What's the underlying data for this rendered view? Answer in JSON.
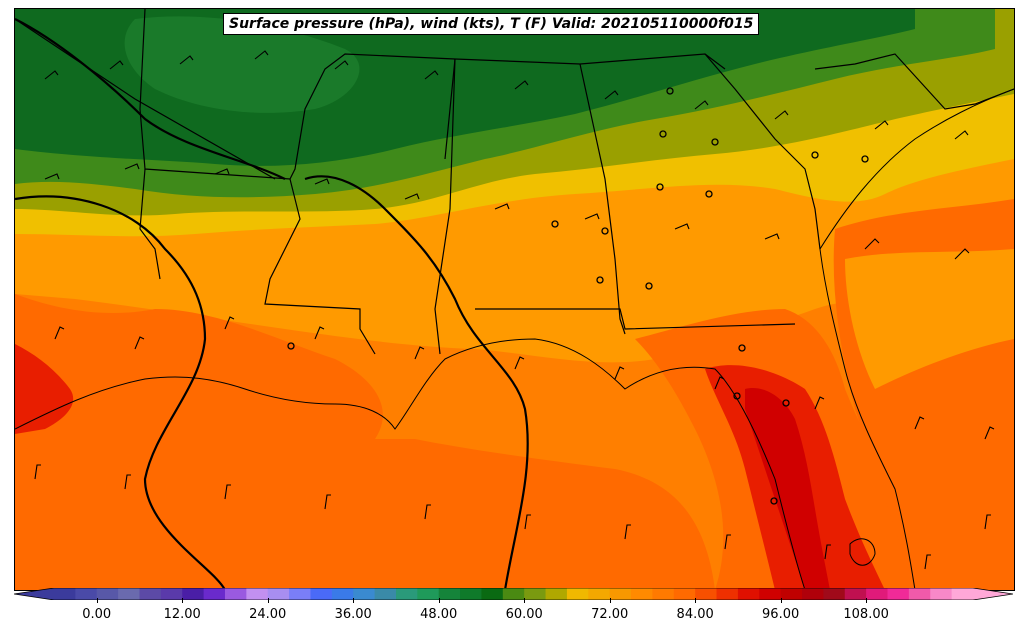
{
  "title": "Surface pressure (hPa), wind (kts), T (F) Valid: 202105110000f015",
  "colorbar": {
    "tick_labels": [
      "0.00",
      "12.00",
      "24.00",
      "36.00",
      "48.00",
      "60.00",
      "72.00",
      "84.00",
      "96.00",
      "108.00"
    ],
    "min": -6,
    "max": 123,
    "bin_width": 3,
    "colors": [
      "#3b3b9c",
      "#4a4aa8",
      "#5858a8",
      "#6a6aae",
      "#5c4aa6",
      "#5a3aaa",
      "#4a1ea6",
      "#6a2acc",
      "#9a5ae0",
      "#c290f0",
      "#a88ef0",
      "#7a7ef8",
      "#4a6af8",
      "#3a7ae8",
      "#3a8ad0",
      "#3a8aa8",
      "#2a9a7a",
      "#1f9a5a",
      "#15843a",
      "#0f7a2a",
      "#0a6a12",
      "#4a8a12",
      "#7a9a10",
      "#b0a800",
      "#f0b800",
      "#f4a800",
      "#f89800",
      "#ff8a00",
      "#ff7a00",
      "#ff6a00",
      "#f85000",
      "#ee3000",
      "#e01000",
      "#d00000",
      "#c00000",
      "#b0000a",
      "#a00a1a",
      "#c01050",
      "#e01a7a",
      "#f02a98",
      "#f05aaa",
      "#f888c8",
      "#ffa8d8"
    ]
  },
  "map": {
    "colors": {
      "dark_green": "#0f6a1f",
      "mid_green": "#1a7a2a",
      "green": "#3f8a1a",
      "olive": "#9aa000",
      "yellow": "#f0c000",
      "light_orange": "#ff9a00",
      "orange": "#ff7f00",
      "dark_orange": "#ff6a00",
      "red": "#e81e00",
      "deep_red": "#d00000"
    }
  }
}
